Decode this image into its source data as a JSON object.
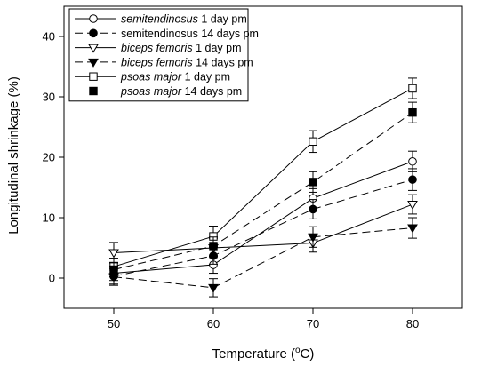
{
  "chart_data": {
    "type": "line",
    "title": "",
    "xlabel_prefix": "Temperature (",
    "xlabel_sup": "o",
    "xlabel_suffix": "C)",
    "ylabel": "Longitudinal shrinkage (%)",
    "x": [
      50,
      60,
      70,
      80
    ],
    "xlim": [
      45,
      85
    ],
    "ylim": [
      -5,
      45
    ],
    "xticks": [
      50,
      60,
      70,
      80
    ],
    "yticks": [
      0,
      10,
      20,
      30,
      40
    ],
    "grid": false,
    "legend_position": "top-left",
    "series": [
      {
        "name_italic": "semitendinosus",
        "name_rest": " 1 day pm",
        "name_italic_first": false,
        "marker": "circle-open",
        "dash": "solid",
        "values": [
          0.8,
          2.2,
          13.2,
          19.3
        ],
        "errors": [
          1.2,
          1.4,
          1.6,
          1.7
        ]
      },
      {
        "name_italic": "",
        "name_rest": "semitendinosus 14 days pm",
        "marker": "circle-filled",
        "dash": "dashed",
        "values": [
          0.3,
          3.7,
          11.4,
          16.3
        ],
        "errors": [
          1.3,
          1.4,
          1.6,
          1.8
        ]
      },
      {
        "name_italic": "biceps femoris",
        "name_rest": " 1 day pm",
        "marker": "triangle-down-open",
        "dash": "solid",
        "values": [
          4.2,
          5.0,
          5.8,
          12.2
        ],
        "errors": [
          1.7,
          1.6,
          1.5,
          1.6
        ]
      },
      {
        "name_italic": "biceps femoris",
        "name_rest": " 14 days pm",
        "marker": "triangle-down-filled",
        "dash": "dashed",
        "values": [
          0.2,
          -1.6,
          6.8,
          8.3
        ],
        "errors": [
          1.4,
          1.5,
          1.7,
          1.7
        ]
      },
      {
        "name_italic": "psoas major",
        "name_rest": " 1 day pm",
        "marker": "square-open",
        "dash": "solid",
        "values": [
          1.9,
          6.9,
          22.6,
          31.4
        ],
        "errors": [
          1.4,
          1.7,
          1.8,
          1.7
        ]
      },
      {
        "name_italic": "psoas major",
        "name_rest": " 14 days pm",
        "marker": "square-filled",
        "dash": "dashed",
        "values": [
          1.4,
          5.3,
          15.9,
          27.4
        ],
        "errors": [
          1.2,
          1.5,
          1.7,
          1.7
        ]
      }
    ]
  }
}
